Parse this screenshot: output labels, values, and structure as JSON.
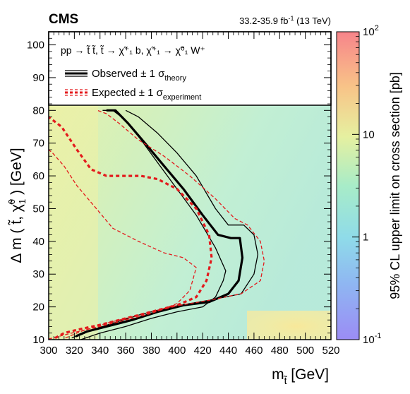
{
  "header": {
    "experiment": "CMS",
    "lumi_prefix": "33.2-35.9 fb",
    "lumi_exp": "-1",
    "lumi_suffix": " (13 TeV)"
  },
  "chart_data": {
    "type": "heatmap",
    "title": "",
    "xlabel": "m",
    "xlabel_sub": "t̃",
    "xlabel_unit": " [GeV]",
    "ylabel_parts": [
      "Δ m ( ",
      "t̃",
      ", ",
      "χ̃",
      "0",
      "1",
      " ) [GeV]"
    ],
    "zlabel": "95% CL upper limit on cross section [pb]",
    "xlim": [
      300,
      520
    ],
    "ylim": [
      10,
      104
    ],
    "x_ticks": [
      300,
      320,
      340,
      360,
      380,
      400,
      420,
      440,
      460,
      480,
      500,
      520
    ],
    "y_ticks": [
      10,
      20,
      30,
      40,
      50,
      60,
      70,
      80,
      90,
      100
    ],
    "z_scale": "log",
    "z_range": [
      0.1,
      100
    ],
    "z_ticks": [
      {
        "base": "10",
        "exp": "-1",
        "value": 0.1
      },
      {
        "base": "1",
        "exp": "",
        "value": 1
      },
      {
        "base": "10",
        "exp": "",
        "value": 10
      },
      {
        "base": "10",
        "exp": "2",
        "value": 100
      }
    ],
    "legend": {
      "placement": "top",
      "process": "pp → t̃ t̃, t̃ → χ̃⁺₁ b, χ̃⁺₁ → χ̃⁰₁ W⁺",
      "entries": [
        {
          "label": "Observed ± 1 σ",
          "sub": "theory",
          "style": "solid",
          "color": "#000000"
        },
        {
          "label": "Expected ± 1 σ",
          "sub": "experiment",
          "style": "dashed",
          "color": "#e31a1c"
        }
      ]
    },
    "grid": false,
    "heatmap_regions": [
      {
        "desc": "diagonal low-mass band",
        "value": 3.0
      },
      {
        "desc": "central region",
        "value": 1.3
      },
      {
        "desc": "high mass",
        "value": 0.9
      },
      {
        "desc": "low dm strip right",
        "value": 5
      }
    ],
    "series": [
      {
        "name": "Observed",
        "style": "thick-solid",
        "color": "#000000",
        "x": [
          321,
          330,
          345,
          365,
          385,
          405,
          425,
          440,
          448,
          451,
          449,
          442,
          432,
          420,
          405,
          390,
          375,
          362,
          352,
          345
        ],
        "y": [
          11,
          12.5,
          14,
          16,
          18.5,
          20.5,
          21.5,
          24,
          28,
          35,
          41,
          41,
          42,
          48,
          56,
          63,
          70,
          76,
          80,
          80
        ]
      },
      {
        "name": "Observed -1σ",
        "style": "thin-solid",
        "color": "#000000",
        "x": [
          325,
          340,
          360,
          380,
          400,
          420,
          430,
          436,
          438,
          430,
          415,
          400,
          385,
          372,
          360,
          350,
          342
        ],
        "y": [
          10,
          12,
          14,
          16.5,
          18.5,
          20,
          23,
          28,
          31,
          38,
          48,
          56,
          64,
          71,
          77,
          80,
          80
        ]
      },
      {
        "name": "Observed +1σ",
        "style": "thin-solid",
        "color": "#000000",
        "x": [
          318,
          330,
          350,
          370,
          395,
          425,
          450,
          460,
          463,
          460,
          452,
          440,
          430,
          415,
          400,
          385,
          370,
          360
        ],
        "y": [
          10.5,
          12.5,
          15,
          17.5,
          20,
          22,
          24,
          30,
          36,
          42,
          45,
          45,
          50,
          60,
          67,
          73,
          78,
          80
        ]
      },
      {
        "name": "Expected",
        "style": "thick-dashed",
        "color": "#e31a1c",
        "x": [
          305,
          312,
          322,
          340,
          360,
          380,
          400,
          415,
          423,
          427,
          425,
          415,
          400,
          385,
          372,
          358,
          345,
          333,
          322,
          310,
          300
        ],
        "y": [
          10.5,
          12,
          13,
          14.5,
          16.5,
          18.5,
          20.5,
          23,
          28,
          35,
          42,
          50,
          56,
          59,
          60,
          60,
          60,
          62,
          68,
          75,
          78
        ]
      },
      {
        "name": "Expected -1σ",
        "style": "thin-dashed",
        "color": "#e31a1c",
        "x": [
          300,
          310,
          320,
          340,
          360,
          380,
          400,
          410,
          415,
          405,
          390,
          370,
          350,
          335,
          322,
          312,
          303,
          300
        ],
        "y": [
          10.2,
          11.2,
          12.2,
          14,
          16,
          18,
          21,
          25,
          32,
          35,
          36.5,
          40,
          44,
          51,
          57,
          63,
          67,
          68
        ]
      },
      {
        "name": "Expected +1σ",
        "style": "thin-dashed",
        "color": "#e31a1c",
        "x": [
          313,
          325,
          345,
          370,
          395,
          425,
          450,
          465,
          468,
          465,
          455,
          445,
          430,
          410,
          390,
          370,
          355,
          345,
          338
        ],
        "y": [
          10.5,
          12.5,
          15,
          17.5,
          20,
          22,
          24,
          28,
          34,
          40,
          45,
          47,
          53,
          60,
          66,
          71,
          76,
          79,
          80
        ]
      }
    ]
  }
}
